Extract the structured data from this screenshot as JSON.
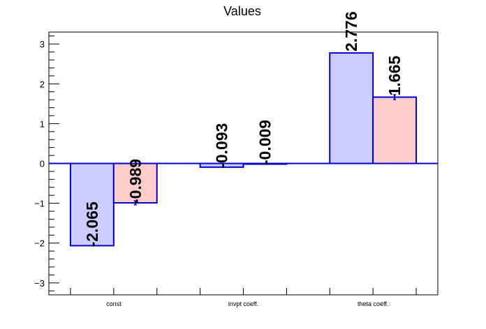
{
  "chart_data": {
    "type": "bar",
    "title": "Values",
    "categories": [
      "const",
      "invpt coeff.",
      "theta coeff."
    ],
    "series": [
      {
        "values": [
          -2.065,
          -0.093,
          2.776
        ],
        "labels": [
          "-2.065",
          "-0.093",
          "2.776"
        ],
        "errors": [
          0.0,
          0.0,
          0.0
        ],
        "color": "#ccccff",
        "edge_color": "#0000cc"
      },
      {
        "values": [
          -0.989,
          -0.009,
          1.665
        ],
        "labels": [
          "-0.989",
          "-0.009",
          "1.665"
        ],
        "errors": [
          0.05,
          0.01,
          0.06
        ],
        "color": "#ffcccc",
        "edge_color": "#0000cc"
      }
    ],
    "y_ticks": [
      -3,
      -2,
      -1,
      0,
      1,
      2,
      3
    ],
    "y_tick_labels": [
      "−3",
      "−2",
      "−1",
      "0",
      "1",
      "2",
      "3"
    ],
    "ylim": [
      -3.3,
      3.3
    ],
    "xlabel": "",
    "ylabel": "",
    "grid": false,
    "zero_line_color": "#0000cc",
    "axis_color": "#000000"
  }
}
